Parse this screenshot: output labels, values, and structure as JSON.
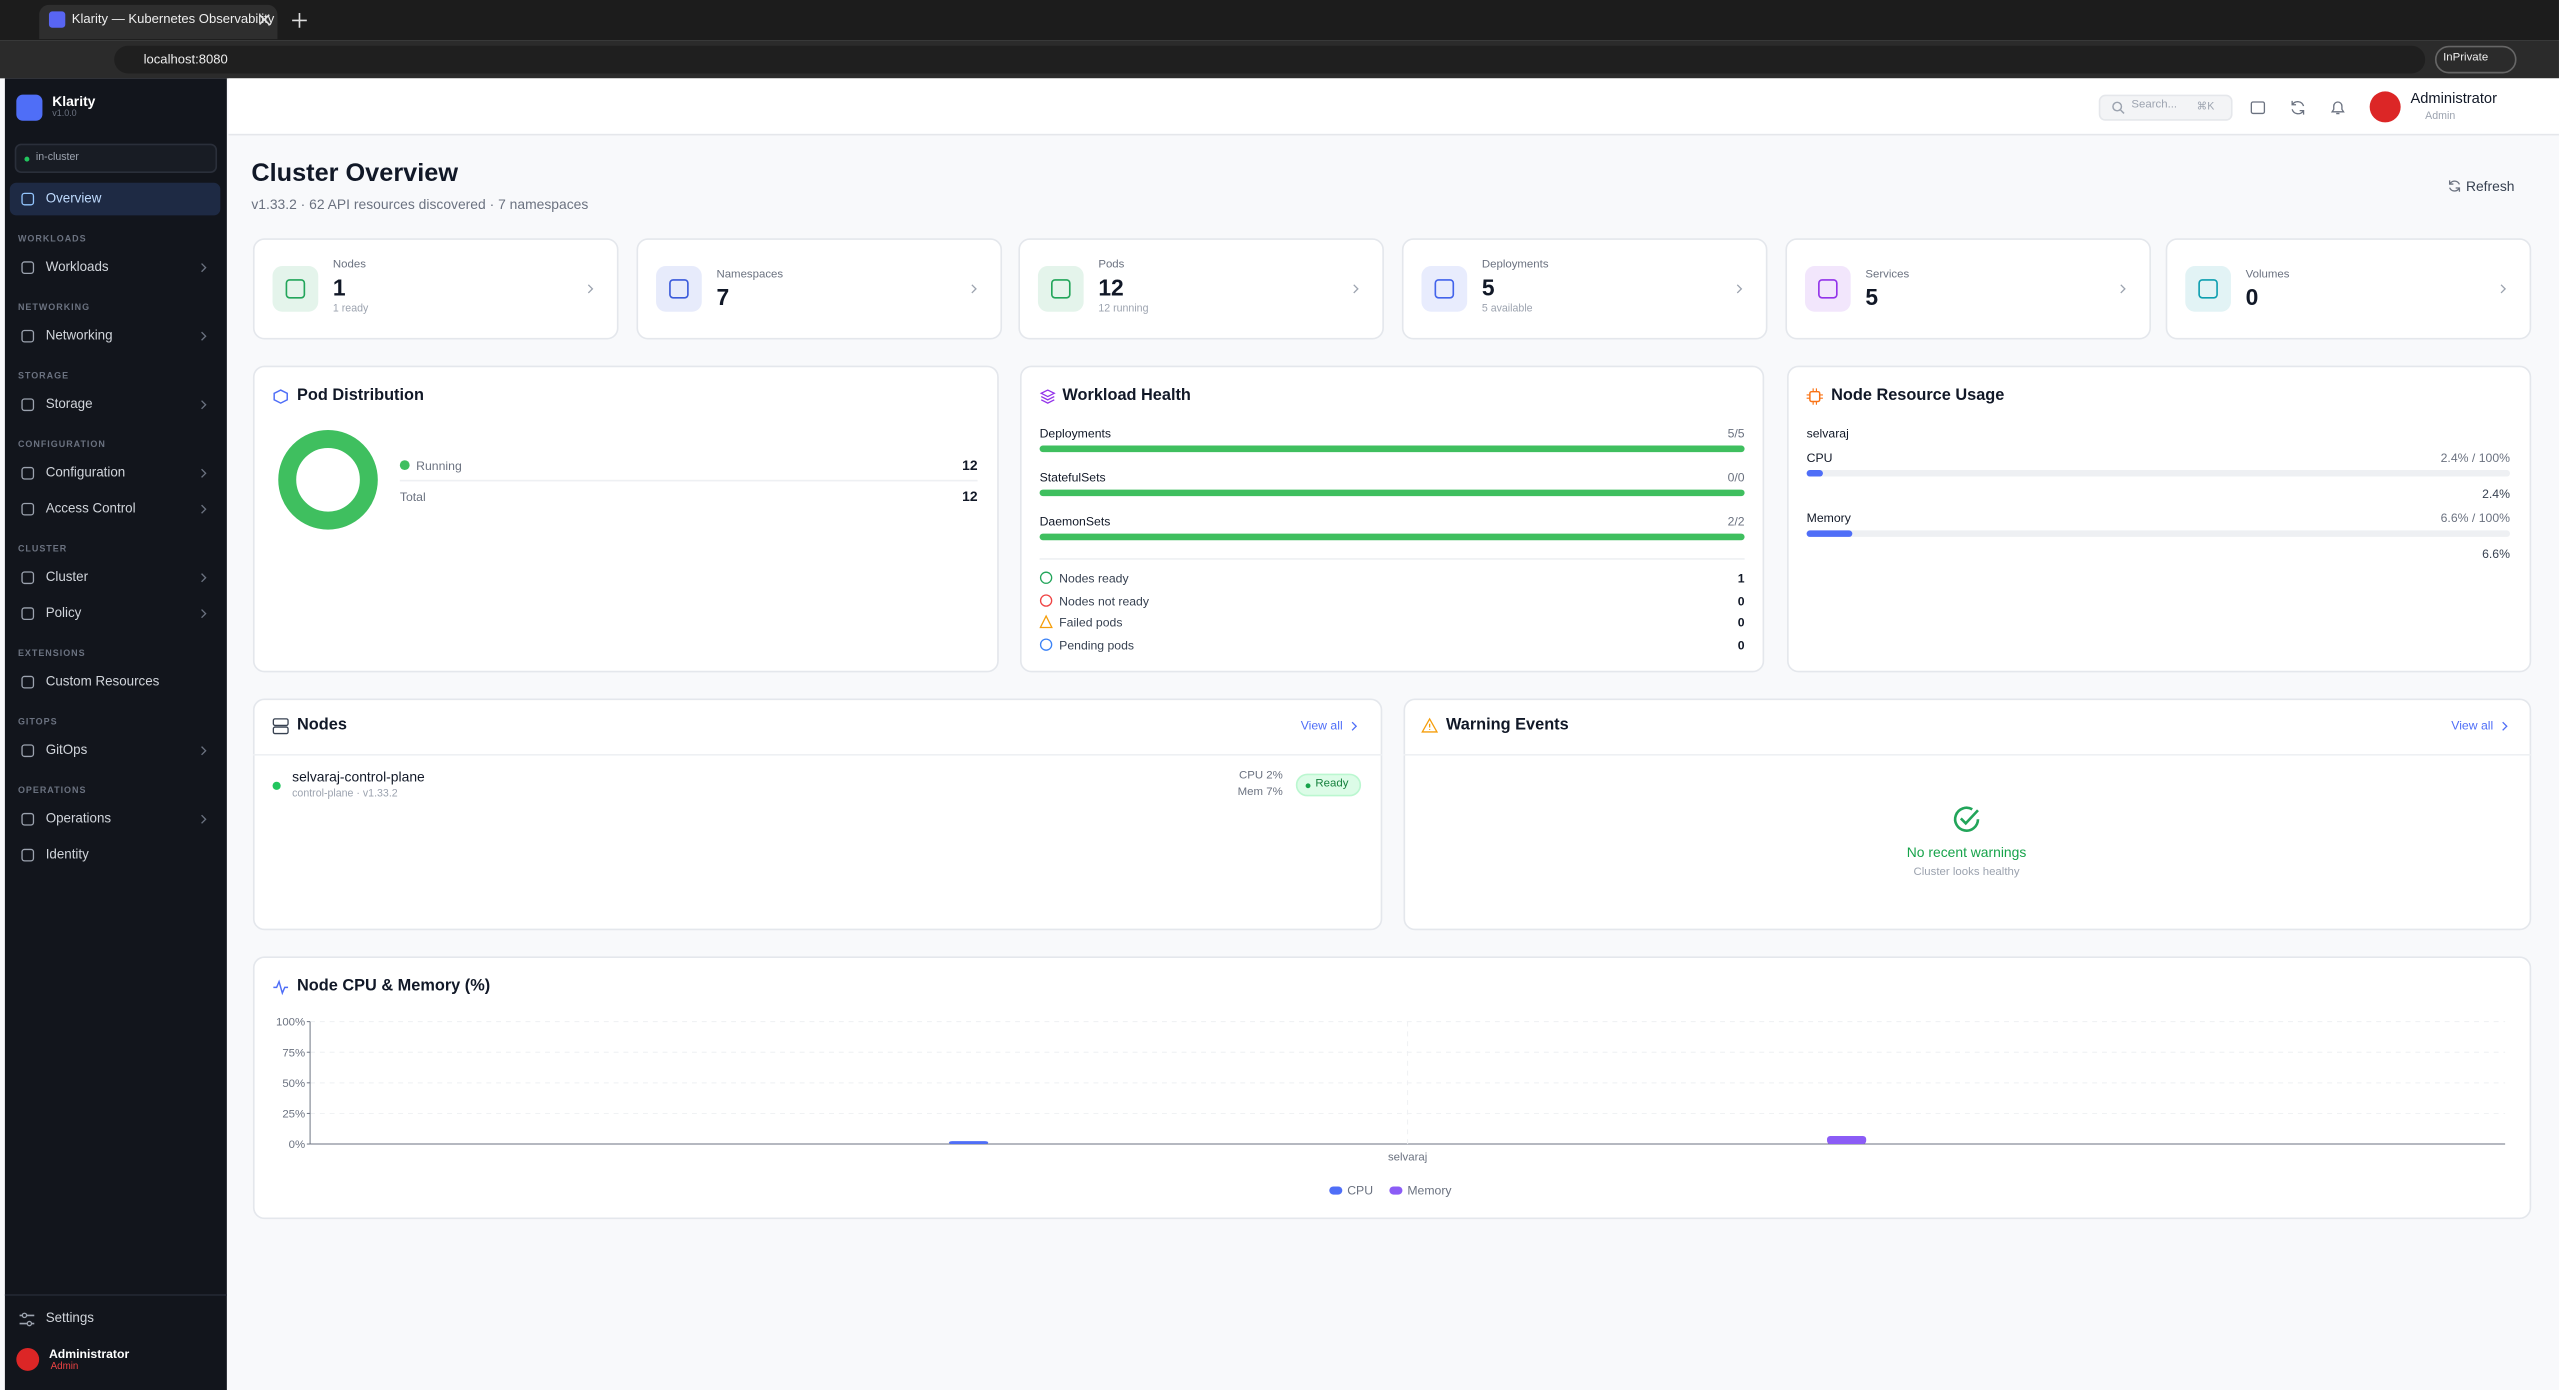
{
  "browser": {
    "tab_title": "Klarity — Kubernetes Observability",
    "url": "localhost:8080",
    "inprivate": "InPrivate"
  },
  "sidebar": {
    "app_name": "Klarity",
    "version": "v1.0.0",
    "context": "in-cluster",
    "nav": [
      {
        "label": "Overview",
        "active": true
      },
      {
        "section": "WORKLOADS",
        "label": "Workloads",
        "expandable": true
      },
      {
        "section": "NETWORKING",
        "label": "Networking",
        "expandable": true
      },
      {
        "section": "STORAGE",
        "label": "Storage",
        "expandable": true
      },
      {
        "section": "CONFIGURATION",
        "label": "Configuration",
        "expandable": true
      },
      {
        "label": "Access Control",
        "expandable": true
      },
      {
        "section": "CLUSTER",
        "label": "Cluster",
        "expandable": true
      },
      {
        "label": "Policy",
        "expandable": true
      },
      {
        "section": "EXTENSIONS",
        "label": "Custom Resources"
      },
      {
        "section": "GITOPS",
        "label": "GitOps",
        "expandable": true
      },
      {
        "section": "OPERATIONS",
        "label": "Operations",
        "expandable": true
      },
      {
        "label": "Identity"
      }
    ],
    "settings": "Settings",
    "user": "Administrator",
    "role": "Admin"
  },
  "header": {
    "search": "Search...",
    "shortcut": "⌘K",
    "user": "Administrator",
    "role": "Admin"
  },
  "page": {
    "title": "Cluster Overview",
    "subtitle": "v1.33.2 · 62 API resources discovered · 7 namespaces",
    "refresh": "Refresh"
  },
  "stats": [
    {
      "label": "Nodes",
      "value": 1,
      "detail": "1 ready",
      "color": "#22a55a"
    },
    {
      "label": "Namespaces",
      "value": 7,
      "color": "#3b5bdb"
    },
    {
      "label": "Pods",
      "value": 12,
      "detail": "12 running",
      "color": "#22a55a"
    },
    {
      "label": "Deployments",
      "value": 5,
      "detail": "5 available",
      "color": "#4263eb"
    },
    {
      "label": "Services",
      "value": 5,
      "color": "#9333ea"
    },
    {
      "label": "Volumes",
      "value": 0,
      "color": "#0e9fb0"
    }
  ],
  "pod_distribution": {
    "title": "Pod Distribution",
    "items": [
      {
        "label": "Running",
        "value": 12
      },
      {
        "label": "Total",
        "value": 12
      }
    ]
  },
  "workload_health": {
    "title": "Workload Health",
    "bars": [
      {
        "label": "Deployments",
        "value": "5/5"
      },
      {
        "label": "StatefulSets",
        "value": "0/0"
      },
      {
        "label": "DaemonSets",
        "value": "2/2"
      }
    ],
    "checks": [
      {
        "label": "Nodes ready",
        "value": 1,
        "status": "ok"
      },
      {
        "label": "Nodes not ready",
        "value": 0,
        "status": "error"
      },
      {
        "label": "Failed pods",
        "value": 0,
        "status": "warn"
      },
      {
        "label": "Pending pods",
        "value": 0,
        "status": "pending"
      }
    ]
  },
  "node_resources": {
    "title": "Node Resource Usage",
    "node": "selvaraj",
    "metrics": [
      {
        "label": "CPU",
        "limit": "2.4% / 100%",
        "value": 2.4,
        "value_label": "2.4%",
        "color": "#4f6ef7"
      },
      {
        "label": "Memory",
        "limit": "6.6% / 100%",
        "value": 6.6,
        "value_label": "6.6%",
        "color": "#4f6ef7"
      }
    ]
  },
  "nodes_panel": {
    "title": "Nodes",
    "view_all": "View all",
    "items": [
      {
        "name": "selvaraj-control-plane",
        "meta": "control-plane · v1.33.2",
        "cpu": "CPU 2%",
        "mem": "Mem 7%",
        "status": "Ready"
      }
    ]
  },
  "warnings": {
    "title": "Warning Events",
    "view_all": "View all",
    "empty_title": "No recent warnings",
    "empty_subtitle": "Cluster looks healthy"
  },
  "chart_data": {
    "type": "bar",
    "title": "Node CPU & Memory (%)",
    "categories": [
      "selvaraj"
    ],
    "series": [
      {
        "name": "CPU",
        "color": "#4f6ef7",
        "values": [
          2.4
        ]
      },
      {
        "name": "Memory",
        "color": "#8b5cf6",
        "values": [
          6.6
        ]
      }
    ],
    "ylim": [
      0,
      100
    ],
    "yticks": [
      {
        "value": 0,
        "label": "0%"
      },
      {
        "value": 25,
        "label": "25%"
      },
      {
        "value": 50,
        "label": "50%"
      },
      {
        "value": 75,
        "label": "75%"
      },
      {
        "value": 100,
        "label": "100%"
      }
    ],
    "grid": true
  }
}
